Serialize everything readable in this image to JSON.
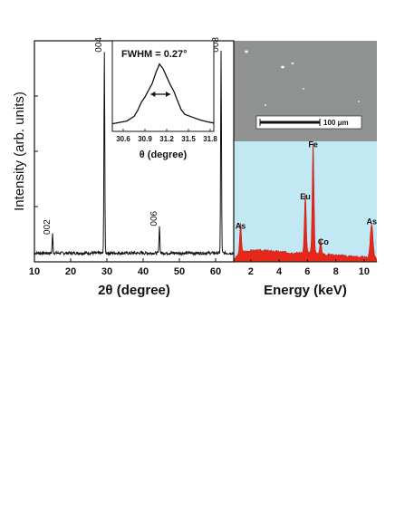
{
  "chart_data": [
    {
      "type": "line",
      "xlabel": "2θ (degree)",
      "ylabel": "Intensity (arb. units)",
      "xlim": [
        10,
        65
      ],
      "ylim": [
        0,
        100
      ],
      "xticks": [
        10,
        20,
        30,
        40,
        50,
        60
      ],
      "grid": false,
      "peaks": [
        {
          "label": "002",
          "x": 15.0,
          "y": 9
        },
        {
          "label": "004",
          "x": 29.3,
          "y": 95
        },
        {
          "label": "006",
          "x": 44.5,
          "y": 13
        },
        {
          "label": "008",
          "x": 61.5,
          "y": 95
        }
      ],
      "baseline": 2
    },
    {
      "type": "line",
      "xlabel": "θ (degree)",
      "annotation": "FWHM = 0.27°",
      "xlim": [
        30.45,
        31.85
      ],
      "ylim": [
        0,
        100
      ],
      "xticks": [
        "30.6",
        "30.9",
        "31.2",
        "31.5",
        "31.8"
      ],
      "x": [
        30.45,
        30.55,
        30.65,
        30.75,
        30.8,
        30.85,
        30.9,
        30.95,
        31.0,
        31.05,
        31.1,
        31.15,
        31.2,
        31.25,
        31.3,
        31.35,
        31.4,
        31.45,
        31.55,
        31.65,
        31.75,
        31.85
      ],
      "y": [
        6,
        8,
        10,
        17,
        26,
        38,
        46,
        56,
        66,
        82,
        95,
        88,
        76,
        64,
        54,
        40,
        27,
        20,
        16,
        12,
        9,
        7
      ],
      "fwhm_range": [
        30.98,
        31.25
      ]
    },
    {
      "type": "area",
      "xlabel": "Energy (keV)",
      "xlim": [
        0.8,
        10.9
      ],
      "ylim": [
        0,
        100
      ],
      "xticks": [
        2,
        4,
        6,
        8,
        10
      ],
      "color": "#e8271b",
      "background": "#c2e9f3",
      "peaks": [
        {
          "label": "As",
          "x": 1.28,
          "y": 26
        },
        {
          "label": "Eu",
          "x": 5.85,
          "y": 52
        },
        {
          "label": "Fe",
          "x": 6.4,
          "y": 98
        },
        {
          "label": "Co",
          "x": 6.93,
          "y": 12
        },
        {
          "label": "As",
          "x": 10.53,
          "y": 30
        }
      ],
      "continuum": [
        [
          0.8,
          0
        ],
        [
          1.0,
          4
        ],
        [
          1.5,
          8
        ],
        [
          2.0,
          9
        ],
        [
          3.0,
          9
        ],
        [
          4.0,
          8
        ],
        [
          5.0,
          7
        ],
        [
          6.0,
          7
        ],
        [
          7.0,
          6
        ],
        [
          8.0,
          5
        ],
        [
          9.0,
          4
        ],
        [
          10.0,
          3
        ],
        [
          10.9,
          2
        ]
      ]
    }
  ],
  "sem_inset": {
    "scale_label": "100 μm",
    "background": "#8f9290"
  }
}
